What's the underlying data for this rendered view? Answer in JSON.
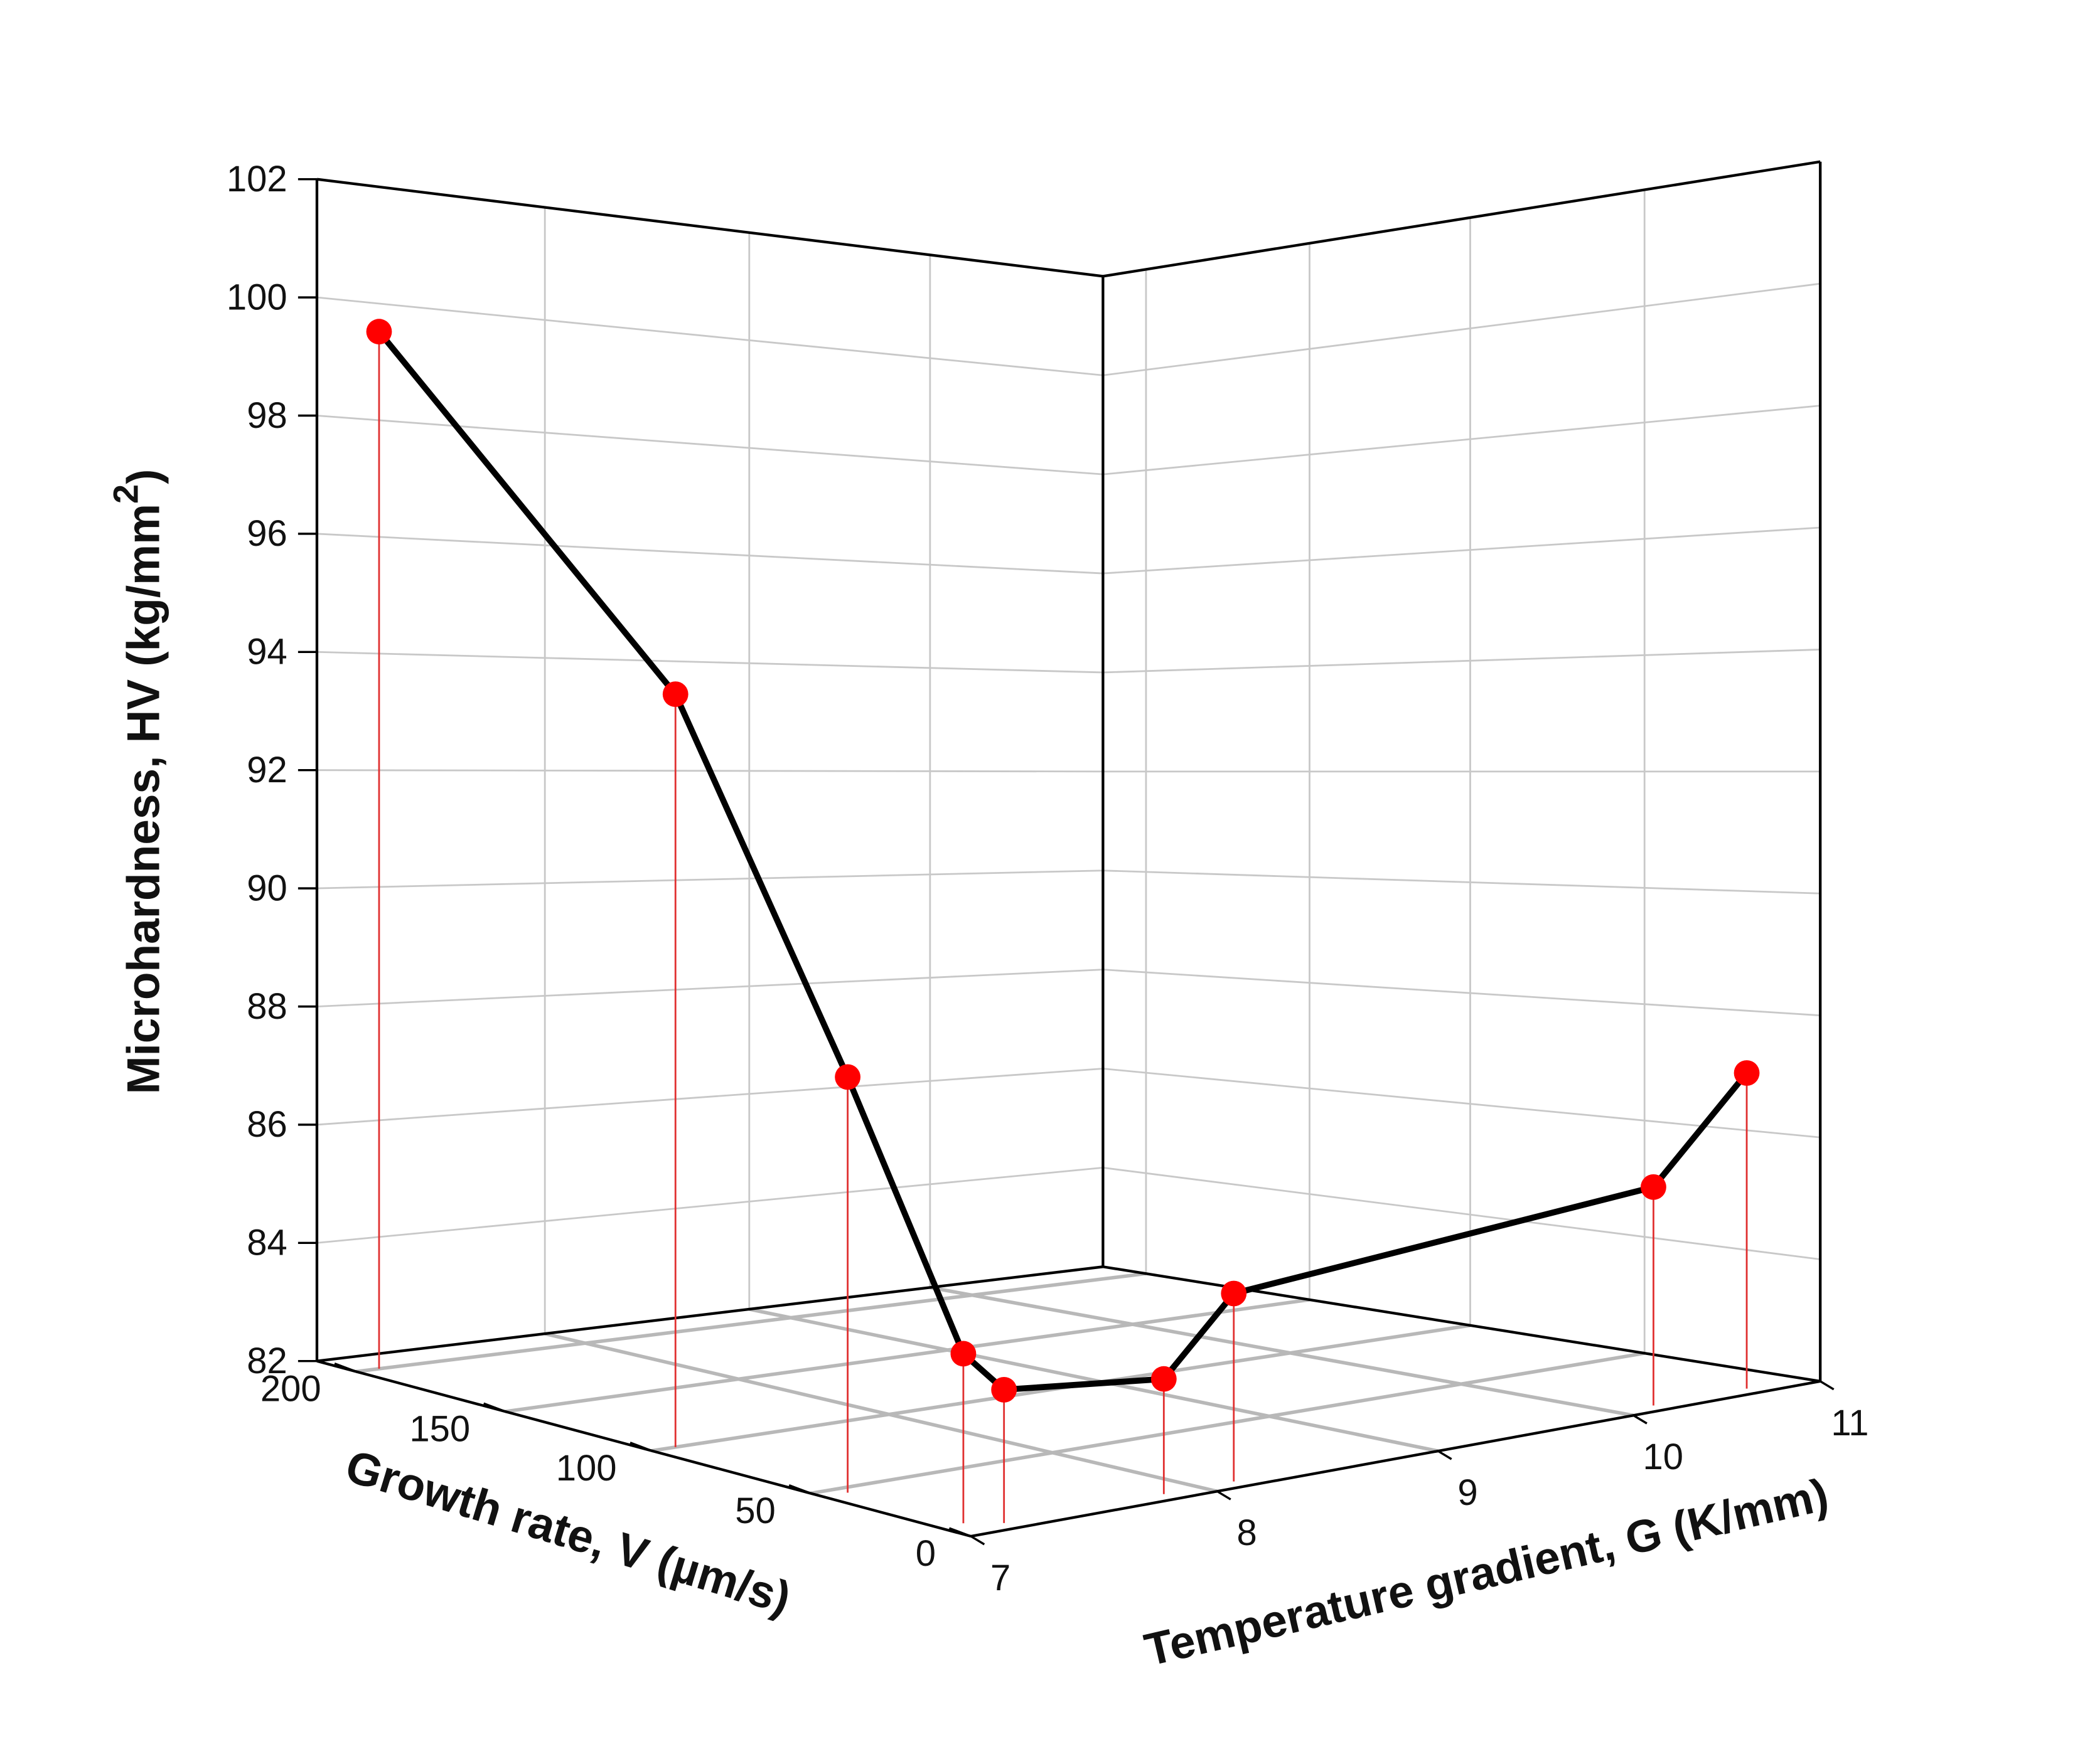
{
  "chart_data": {
    "type": "line3d",
    "title": "",
    "xlabel": "Growth rate, V (µm/s)",
    "ylabel": "Temperature gradient, G (K/mm)",
    "zlabel_main": "Microhardness, HV (kg/mm",
    "zlabel_sup": "2",
    "zlabel_close": ")",
    "xlim": [
      0,
      215
    ],
    "ylim": [
      7,
      11
    ],
    "zlim": [
      82,
      102
    ],
    "x_ticks": [
      "0",
      "50",
      "100",
      "150",
      "200"
    ],
    "y_ticks": [
      "7",
      "8",
      "9",
      "10",
      "11"
    ],
    "z_ticks": [
      "82",
      "84",
      "86",
      "88",
      "90",
      "92",
      "94",
      "96",
      "98",
      "100",
      "102"
    ],
    "grid": true,
    "drop_lines": true,
    "points": [
      {
        "V": 200,
        "G": 7.1,
        "HV": 99.6
      },
      {
        "V": 100,
        "G": 7.1,
        "HV": 94.6
      },
      {
        "V": 46,
        "G": 7.1,
        "HV": 88.9
      },
      {
        "V": 10,
        "G": 7.1,
        "HV": 84.8
      },
      {
        "V": 5,
        "G": 7.2,
        "HV": 84.2
      },
      {
        "V": 5,
        "G": 7.85,
        "HV": 83.9
      },
      {
        "V": 5,
        "G": 8.15,
        "HV": 85.1
      },
      {
        "V": 5,
        "G": 10.2,
        "HV": 85.6
      },
      {
        "V": 5,
        "G": 10.7,
        "HV": 87.2
      }
    ],
    "colors": {
      "line": "#000000",
      "marker": "#ff0000",
      "drop_line": "#e03030",
      "grid": "#c8c8c8",
      "floor_grid": "#b8b8b8"
    }
  }
}
